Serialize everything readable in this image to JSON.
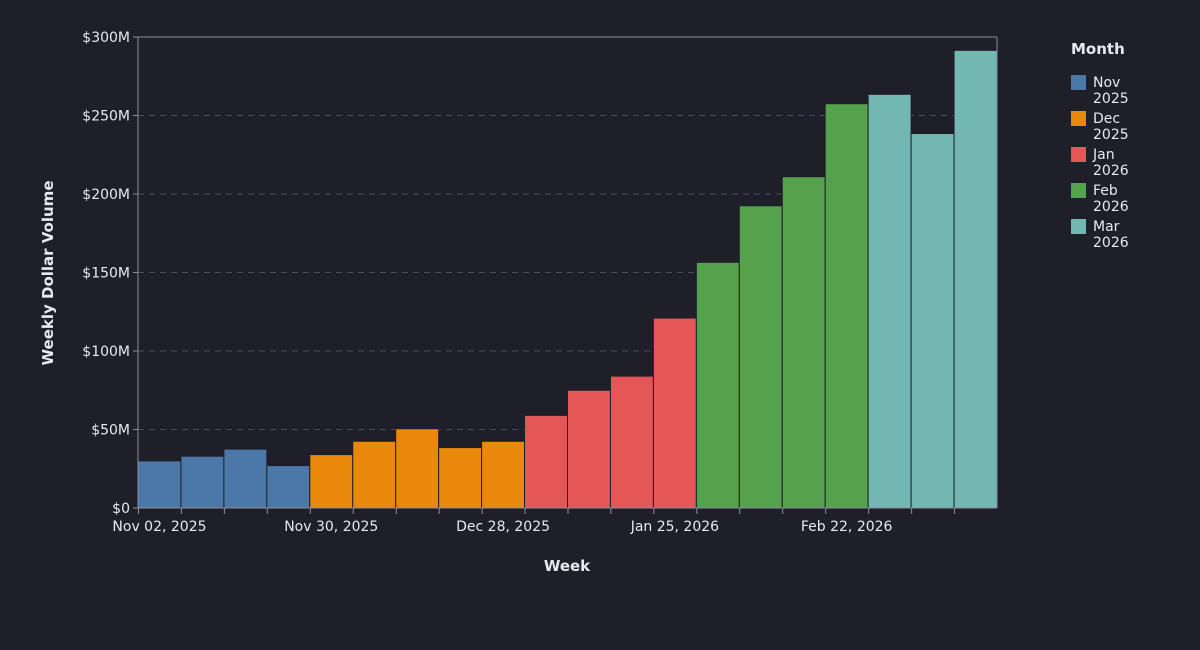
{
  "chart_data": {
    "type": "bar",
    "xlabel": "Week",
    "ylabel": "Weekly Dollar Volume",
    "ylim": [
      0,
      300000000
    ],
    "y_ticks": [
      {
        "value": 0,
        "label": "$0"
      },
      {
        "value": 50000000,
        "label": "$50M"
      },
      {
        "value": 100000000,
        "label": "$100M"
      },
      {
        "value": 150000000,
        "label": "$150M"
      },
      {
        "value": 200000000,
        "label": "$200M"
      },
      {
        "value": 250000000,
        "label": "$250M"
      },
      {
        "value": 300000000,
        "label": "$300M"
      }
    ],
    "x_tick_labels": [
      {
        "index": 0,
        "label": "Nov 02, 2025"
      },
      {
        "index": 4,
        "label": "Nov 30, 2025"
      },
      {
        "index": 8,
        "label": "Dec 28, 2025"
      },
      {
        "index": 12,
        "label": "Jan 25, 2026"
      },
      {
        "index": 16,
        "label": "Feb 22, 2026"
      }
    ],
    "grid": true,
    "legend": {
      "title": "Month",
      "position": "right",
      "entries": [
        {
          "key": "nov2025",
          "line1": "Nov",
          "line2": "2025",
          "color": "#4c78a8"
        },
        {
          "key": "dec2025",
          "line1": "Dec",
          "line2": "2025",
          "color": "#e8890c"
        },
        {
          "key": "jan2026",
          "line1": "Jan",
          "line2": "2026",
          "color": "#e45756"
        },
        {
          "key": "feb2026",
          "line1": "Feb",
          "line2": "2026",
          "color": "#54a24b"
        },
        {
          "key": "mar2026",
          "line1": "Mar",
          "line2": "2026",
          "color": "#72b7b2"
        }
      ]
    },
    "weeks": [
      {
        "month": "nov2025",
        "value": 30000000
      },
      {
        "month": "nov2025",
        "value": 33000000
      },
      {
        "month": "nov2025",
        "value": 37500000
      },
      {
        "month": "nov2025",
        "value": 27000000
      },
      {
        "month": "dec2025",
        "value": 34000000
      },
      {
        "month": "dec2025",
        "value": 42500000
      },
      {
        "month": "dec2025",
        "value": 50500000
      },
      {
        "month": "dec2025",
        "value": 38500000
      },
      {
        "month": "dec2025",
        "value": 42500000
      },
      {
        "month": "jan2026",
        "value": 59000000
      },
      {
        "month": "jan2026",
        "value": 75000000
      },
      {
        "month": "jan2026",
        "value": 84000000
      },
      {
        "month": "jan2026",
        "value": 121000000
      },
      {
        "month": "feb2026",
        "value": 156500000
      },
      {
        "month": "feb2026",
        "value": 192500000
      },
      {
        "month": "feb2026",
        "value": 211000000
      },
      {
        "month": "feb2026",
        "value": 257500000
      },
      {
        "month": "mar2026",
        "value": 263500000
      },
      {
        "month": "mar2026",
        "value": 238500000
      },
      {
        "month": "mar2026",
        "value": 291500000
      }
    ]
  }
}
